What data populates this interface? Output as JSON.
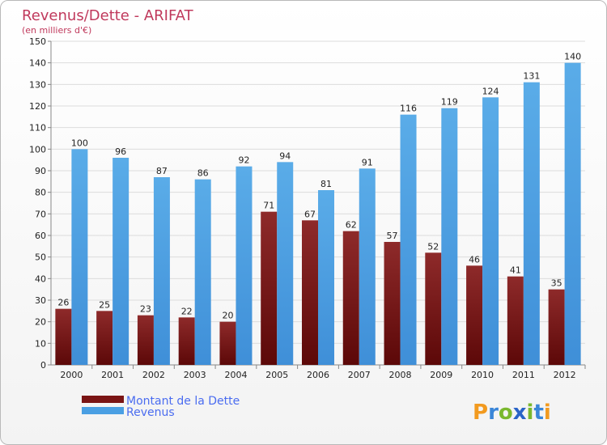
{
  "chart_data": {
    "type": "bar",
    "title": "Revenus/Dette - ARIFAT",
    "subtitle": "(en milliers d'€)",
    "categories": [
      "2000",
      "2001",
      "2002",
      "2003",
      "2004",
      "2005",
      "2006",
      "2007",
      "2008",
      "2009",
      "2010",
      "2011",
      "2012"
    ],
    "series": [
      {
        "name": "Montant de la Dette",
        "color": "#7a1414",
        "values": [
          26,
          25,
          23,
          22,
          20,
          71,
          67,
          62,
          57,
          52,
          46,
          41,
          35
        ]
      },
      {
        "name": "Revenus",
        "color": "#4a9fe3",
        "values": [
          100,
          96,
          87,
          86,
          92,
          94,
          81,
          91,
          116,
          119,
          124,
          131,
          140
        ]
      }
    ],
    "ylim": [
      0,
      150
    ],
    "yticks": [
      0,
      10,
      20,
      30,
      40,
      50,
      60,
      70,
      80,
      90,
      100,
      110,
      120,
      130,
      140,
      150
    ],
    "grid": true,
    "legend_position": "bottom-left"
  },
  "logo": {
    "text": "Proxiti",
    "letters": [
      "P",
      "r",
      "o",
      "x",
      "i",
      "t",
      "i"
    ],
    "colors": [
      "#f29a1f",
      "#3a86d8",
      "#7ab82e",
      "#2a64c8",
      "#7ab82e",
      "#3a86d8",
      "#f29a1f"
    ]
  }
}
